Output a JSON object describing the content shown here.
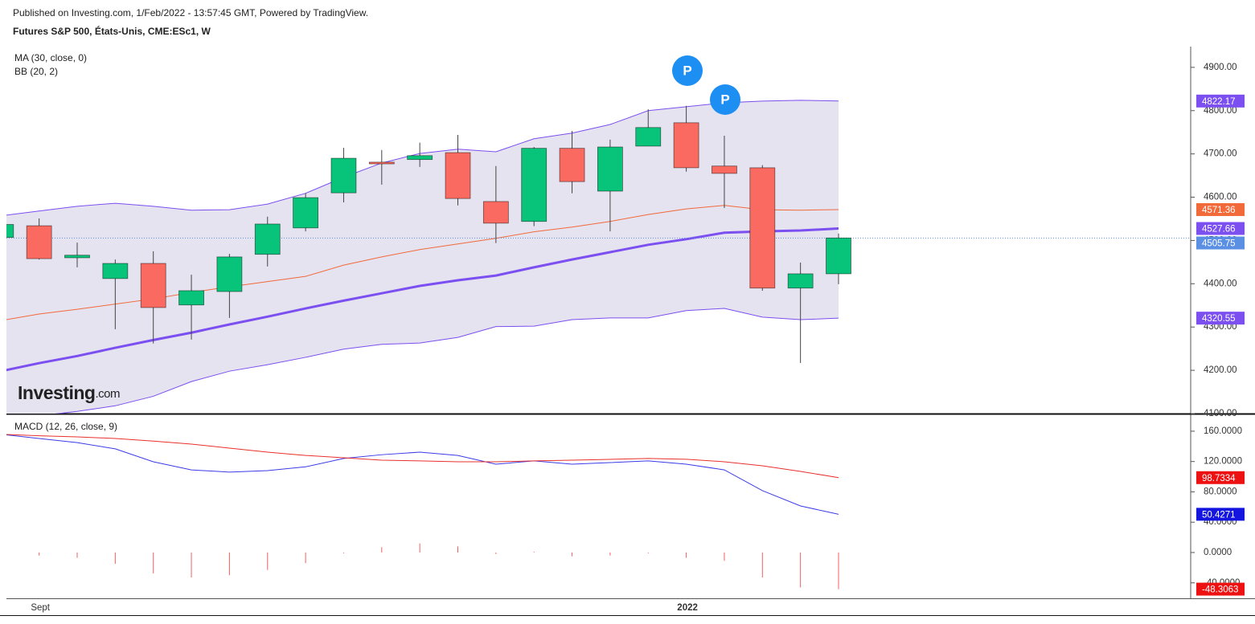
{
  "header": "Published on Investing.com, 1/Feb/2022 - 13:57:45 GMT, Powered by TradingView.",
  "logo": {
    "brand": "Investing",
    "suffix": ".com"
  },
  "annotations": [
    "P",
    "P"
  ],
  "chart_data": [
    {
      "type": "candlestick",
      "title": "Futures S&P 500, États-Unis, CME:ESc1, W",
      "categories": [
        null,
        "Sept",
        null,
        null,
        null,
        null,
        null,
        null,
        null,
        null,
        null,
        null,
        null,
        null,
        null,
        null,
        null,
        null,
        "2022",
        null,
        null,
        null,
        null
      ],
      "open": [
        4507,
        4534,
        4460,
        4412,
        4447,
        4351,
        4382,
        4468,
        4529,
        4610,
        4681,
        4687,
        4703,
        4590,
        4544,
        4713,
        4614,
        4718,
        4772,
        4672,
        4668,
        4390,
        4423
      ],
      "high": [
        4545,
        4551,
        4495,
        4456,
        4475,
        4421,
        4469,
        4555,
        4609,
        4714,
        4709,
        4726,
        4744,
        4672,
        4716,
        4753,
        4733,
        4803,
        4811,
        4742,
        4674,
        4449,
        4516
      ],
      "low": [
        4500,
        4456,
        4438,
        4295,
        4262,
        4271,
        4321,
        4440,
        4521,
        4588,
        4629,
        4670,
        4581,
        4494,
        4533,
        4609,
        4521,
        4718,
        4659,
        4575,
        4384,
        4217,
        4399
      ],
      "close": [
        4537,
        4458,
        4466,
        4447,
        4345,
        4384,
        4462,
        4538,
        4599,
        4690,
        4677,
        4696,
        4597,
        4540,
        4713,
        4636,
        4716,
        4761,
        4668,
        4655,
        4390,
        4423,
        4505.75
      ],
      "up_color": "#08c47a",
      "down_color": "#fa6a60",
      "last_color": "#5b8fe3",
      "series": [
        {
          "name": "MA (30, close, 0)",
          "color": "#7b4ff0",
          "values": [
            4198,
            4216.6,
            4233,
            4252,
            4270,
            4287,
            4306,
            4324,
            4343,
            4361,
            4378,
            4395,
            4408,
            4419,
            4438,
            4456,
            4473,
            4490,
            4503,
            4518,
            4521,
            4523,
            4527.66
          ]
        },
        {
          "name": "BB (20, 2)",
          "color": "#7b4ff0",
          "basis_color": "#f2693a",
          "fill": "#e5e3f0",
          "upper": [
            4557,
            4568,
            4579,
            4586,
            4579,
            4570,
            4571,
            4584,
            4609,
            4646,
            4679,
            4701,
            4711,
            4705,
            4735,
            4748,
            4768,
            4800,
            4809,
            4818,
            4822,
            4824,
            4822.17
          ],
          "basis": [
            4315,
            4330,
            4341,
            4353,
            4365,
            4380,
            4393,
            4405,
            4417,
            4443,
            4462,
            4479,
            4492,
            4505,
            4520,
            4531,
            4544,
            4560,
            4573,
            4581,
            4571,
            4570,
            4571.36
          ],
          "lower": [
            4085,
            4095,
            4105,
            4118,
            4140,
            4174,
            4198,
            4213,
            4230,
            4249,
            4260,
            4263,
            4276,
            4301,
            4302,
            4317,
            4321,
            4321,
            4338,
            4343,
            4323,
            4317,
            4320.55
          ]
        }
      ],
      "ylim": [
        4100,
        4948
      ],
      "yticks": [
        {
          "value": 4100,
          "label": "4100.00"
        },
        {
          "value": 4200,
          "label": "4200.00"
        },
        {
          "value": 4300,
          "label": "4300.00"
        },
        {
          "value": 4400,
          "label": "4400.00"
        },
        {
          "value": 4500,
          "label": "4500.00"
        },
        {
          "value": 4600,
          "label": "4600.00"
        },
        {
          "value": 4700,
          "label": "4700.00"
        },
        {
          "value": 4800,
          "label": "4800.00"
        },
        {
          "value": 4900,
          "label": "4900.00"
        }
      ]
    },
    {
      "type": "macd",
      "title": "MACD (12, 26, close, 9)",
      "series": [
        {
          "color": "#3b3be8",
          "values": [
            156,
            150.4,
            145,
            136.7,
            119.7,
            109,
            106,
            108,
            113,
            124,
            129,
            132.4,
            128,
            116.5,
            120.8,
            116.5,
            118.6,
            120.8,
            116.5,
            109,
            81.6,
            61.4,
            50.4271
          ]
        },
        {
          "color": "#e8302d",
          "values": [
            156,
            154,
            152.5,
            150.4,
            147,
            143,
            137.7,
            132.4,
            128,
            125,
            121.8,
            120.8,
            119.7,
            119.7,
            120.8,
            121.8,
            122.9,
            124,
            123,
            119.7,
            114.4,
            107,
            98.7334
          ]
        }
      ],
      "histogram": {
        "color": "#f06060",
        "values": [
          0,
          -4,
          -7,
          -15,
          -27.5,
          -33,
          -30,
          -23,
          -14,
          -1,
          7,
          12,
          8,
          -2,
          1,
          -5,
          -4,
          -1,
          -7,
          -11,
          -33,
          -46,
          -48.3063
        ]
      },
      "ylim": [
        -60.4,
        181.1
      ],
      "yticks": [
        {
          "value": -40,
          "label": "-40.0000"
        },
        {
          "value": 0,
          "label": "0.0000"
        },
        {
          "value": 40,
          "label": "40.0000"
        },
        {
          "value": 80,
          "label": "80.0000"
        },
        {
          "value": 120,
          "label": "120.0000"
        },
        {
          "value": 160,
          "label": "160.0000"
        }
      ]
    }
  ]
}
